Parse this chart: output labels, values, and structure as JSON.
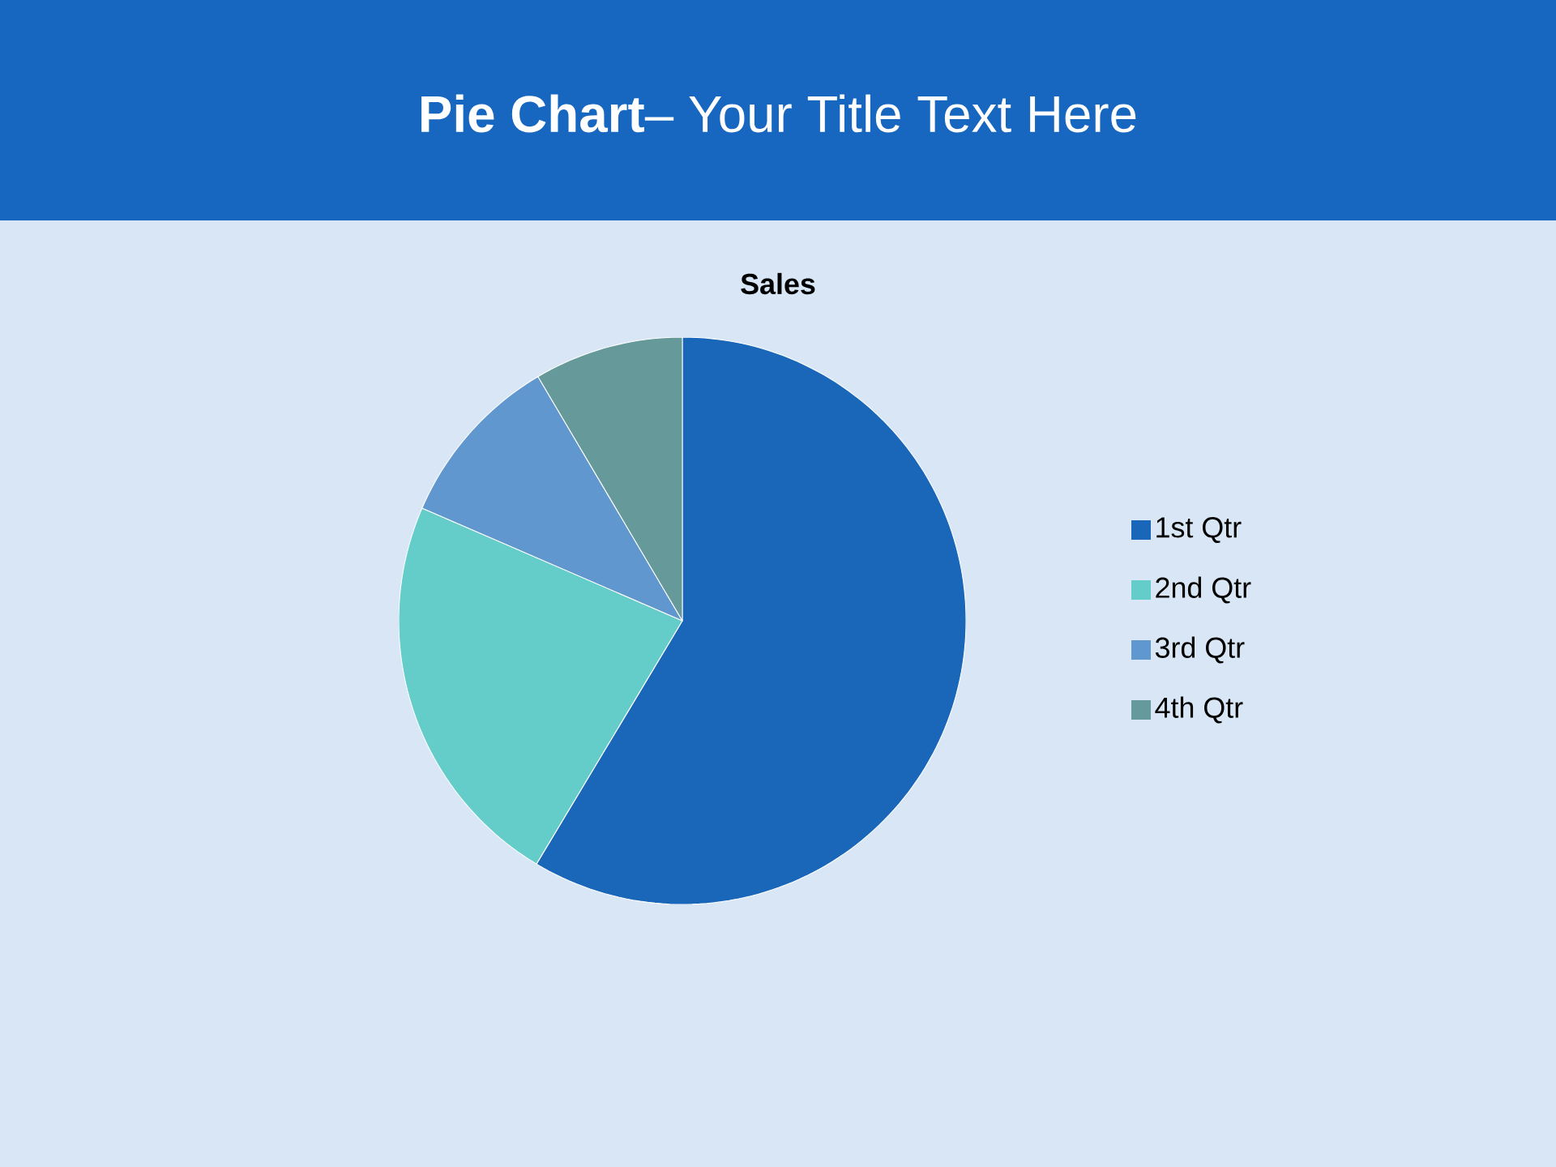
{
  "chart_data": {
    "type": "pie",
    "title": "**Pie Chart**– Your Title Text Here",
    "subtitle": "Sales",
    "categories": [
      "1st Qtr",
      "2nd Qtr",
      "3rd Qtr",
      "4th Qtr"
    ],
    "values": [
      58.6,
      22.9,
      10.0,
      8.5
    ],
    "colors": [
      "#1a67b9",
      "#65cdc9",
      "#6197cf",
      "#66999a"
    ],
    "legend": "right"
  }
}
